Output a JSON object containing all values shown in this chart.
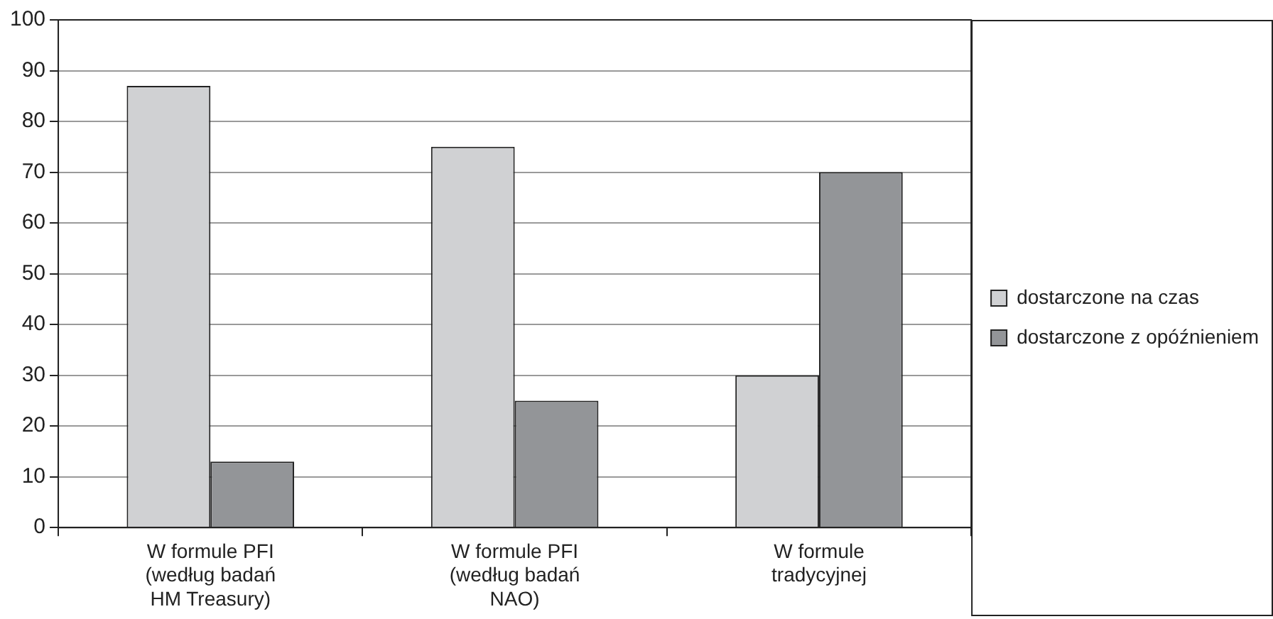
{
  "chart_data": {
    "type": "bar",
    "categories": [
      "W formule PFI (według badań HM Treasury)",
      "W formule PFI (według badań NAO)",
      "W formule tradycyjnej"
    ],
    "series": [
      {
        "name": "dostarczone na czas",
        "color": "#d0d1d3",
        "values": [
          87,
          75,
          30
        ]
      },
      {
        "name": "dostarczone z opóźnieniem",
        "color": "#939598",
        "values": [
          13,
          25,
          70
        ]
      }
    ],
    "ylim": [
      0,
      100
    ],
    "yticks": [
      0,
      10,
      20,
      30,
      40,
      50,
      60,
      70,
      80,
      90,
      100
    ],
    "grid": "y",
    "legend": "right"
  }
}
